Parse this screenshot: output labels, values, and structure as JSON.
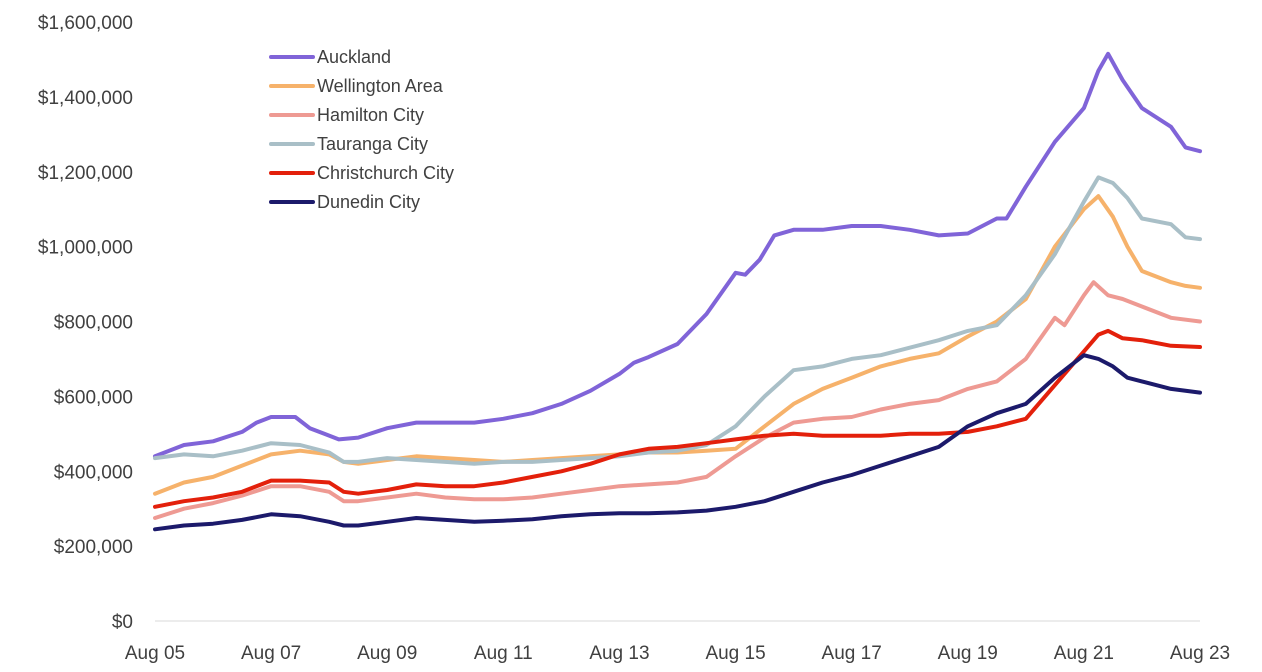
{
  "chart_data": {
    "type": "line",
    "title": "",
    "xlabel": "",
    "ylabel": "",
    "x_tick_labels": [
      "Aug 05",
      "Aug 07",
      "Aug 09",
      "Aug 11",
      "Aug 13",
      "Aug 15",
      "Aug 17",
      "Aug 19",
      "Aug 21",
      "Aug 23"
    ],
    "y_tick_labels": [
      "$0",
      "$200,000",
      "$400,000",
      "$600,000",
      "$800,000",
      "$1,000,000",
      "$1,200,000",
      "$1,400,000",
      "$1,600,000"
    ],
    "x_range": [
      "Aug 05",
      "Aug 23"
    ],
    "ylim": [
      0,
      1600000
    ],
    "grid": false,
    "legend_position": "top-left",
    "series": [
      {
        "name": "Auckland",
        "color": "#8064d8",
        "points": [
          [
            "Aug 05",
            440000
          ],
          [
            "Feb 06",
            470000
          ],
          [
            "Aug 06",
            480000
          ],
          [
            "Feb 07",
            505000
          ],
          [
            "May 07",
            530000
          ],
          [
            "Aug 07",
            545000
          ],
          [
            "Jan 08",
            545000
          ],
          [
            "Apr 08",
            515000
          ],
          [
            "Jul 08",
            500000
          ],
          [
            "Oct 08",
            485000
          ],
          [
            "Feb 09",
            490000
          ],
          [
            "Aug 09",
            515000
          ],
          [
            "Feb 10",
            530000
          ],
          [
            "Aug 10",
            530000
          ],
          [
            "Feb 11",
            530000
          ],
          [
            "Aug 11",
            540000
          ],
          [
            "Feb 12",
            555000
          ],
          [
            "Aug 12",
            580000
          ],
          [
            "Feb 13",
            615000
          ],
          [
            "Aug 13",
            660000
          ],
          [
            "Nov 13",
            690000
          ],
          [
            "Feb 14",
            705000
          ],
          [
            "Aug 14",
            740000
          ],
          [
            "Feb 15",
            820000
          ],
          [
            "Aug 15",
            930000
          ],
          [
            "Oct 15",
            925000
          ],
          [
            "Jan 16",
            965000
          ],
          [
            "Apr 16",
            1030000
          ],
          [
            "Aug 16",
            1045000
          ],
          [
            "Feb 17",
            1045000
          ],
          [
            "Aug 17",
            1055000
          ],
          [
            "Feb 18",
            1055000
          ],
          [
            "Aug 18",
            1045000
          ],
          [
            "Feb 19",
            1030000
          ],
          [
            "Aug 19",
            1035000
          ],
          [
            "Feb 20",
            1075000
          ],
          [
            "Apr 20",
            1075000
          ],
          [
            "Aug 20",
            1160000
          ],
          [
            "Feb 21",
            1280000
          ],
          [
            "Aug 21",
            1370000
          ],
          [
            "Nov 21",
            1470000
          ],
          [
            "Jan 22",
            1515000
          ],
          [
            "Apr 22",
            1445000
          ],
          [
            "Aug 22",
            1370000
          ],
          [
            "Feb 23",
            1320000
          ],
          [
            "May 23",
            1265000
          ],
          [
            "Aug 23",
            1255000
          ]
        ]
      },
      {
        "name": "Wellington Area",
        "color": "#f6b26b",
        "points": [
          [
            "Aug 05",
            340000
          ],
          [
            "Feb 06",
            370000
          ],
          [
            "Aug 06",
            385000
          ],
          [
            "Feb 07",
            415000
          ],
          [
            "Aug 07",
            445000
          ],
          [
            "Feb 08",
            455000
          ],
          [
            "Aug 08",
            445000
          ],
          [
            "Nov 08",
            425000
          ],
          [
            "Feb 09",
            420000
          ],
          [
            "Aug 09",
            430000
          ],
          [
            "Feb 10",
            440000
          ],
          [
            "Aug 10",
            435000
          ],
          [
            "Feb 11",
            430000
          ],
          [
            "Aug 11",
            425000
          ],
          [
            "Feb 12",
            430000
          ],
          [
            "Aug 12",
            435000
          ],
          [
            "Feb 13",
            440000
          ],
          [
            "Aug 13",
            445000
          ],
          [
            "Feb 14",
            450000
          ],
          [
            "Aug 14",
            450000
          ],
          [
            "Feb 15",
            455000
          ],
          [
            "Aug 15",
            460000
          ],
          [
            "Feb 16",
            520000
          ],
          [
            "Aug 16",
            580000
          ],
          [
            "Feb 17",
            620000
          ],
          [
            "Aug 17",
            650000
          ],
          [
            "Feb 18",
            680000
          ],
          [
            "Aug 18",
            700000
          ],
          [
            "Feb 19",
            715000
          ],
          [
            "Aug 19",
            760000
          ],
          [
            "Feb 20",
            800000
          ],
          [
            "Aug 20",
            860000
          ],
          [
            "Feb 21",
            1000000
          ],
          [
            "Aug 21",
            1100000
          ],
          [
            "Nov 21",
            1135000
          ],
          [
            "Feb 22",
            1080000
          ],
          [
            "May 22",
            1000000
          ],
          [
            "Aug 22",
            935000
          ],
          [
            "Feb 23",
            905000
          ],
          [
            "May 23",
            895000
          ],
          [
            "Aug 23",
            890000
          ]
        ]
      },
      {
        "name": "Hamilton City",
        "color": "#ee9a93",
        "points": [
          [
            "Aug 05",
            275000
          ],
          [
            "Feb 06",
            300000
          ],
          [
            "Aug 06",
            315000
          ],
          [
            "Feb 07",
            335000
          ],
          [
            "Aug 07",
            360000
          ],
          [
            "Feb 08",
            360000
          ],
          [
            "Aug 08",
            345000
          ],
          [
            "Nov 08",
            320000
          ],
          [
            "Feb 09",
            320000
          ],
          [
            "Aug 09",
            330000
          ],
          [
            "Feb 10",
            340000
          ],
          [
            "Aug 10",
            330000
          ],
          [
            "Feb 11",
            325000
          ],
          [
            "Aug 11",
            325000
          ],
          [
            "Feb 12",
            330000
          ],
          [
            "Aug 12",
            340000
          ],
          [
            "Feb 13",
            350000
          ],
          [
            "Aug 13",
            360000
          ],
          [
            "Feb 14",
            365000
          ],
          [
            "Aug 14",
            370000
          ],
          [
            "Feb 15",
            385000
          ],
          [
            "Aug 15",
            440000
          ],
          [
            "Feb 16",
            490000
          ],
          [
            "Aug 16",
            530000
          ],
          [
            "Feb 17",
            540000
          ],
          [
            "Aug 17",
            545000
          ],
          [
            "Feb 18",
            565000
          ],
          [
            "Aug 18",
            580000
          ],
          [
            "Feb 19",
            590000
          ],
          [
            "Aug 19",
            620000
          ],
          [
            "Feb 20",
            640000
          ],
          [
            "Aug 20",
            700000
          ],
          [
            "Feb 21",
            810000
          ],
          [
            "Apr 21",
            790000
          ],
          [
            "Aug 21",
            870000
          ],
          [
            "Oct 21",
            905000
          ],
          [
            "Jan 22",
            870000
          ],
          [
            "Apr 22",
            860000
          ],
          [
            "Aug 22",
            840000
          ],
          [
            "Feb 23",
            810000
          ],
          [
            "Aug 23",
            800000
          ]
        ]
      },
      {
        "name": "Tauranga City",
        "color": "#a9bfc7",
        "points": [
          [
            "Aug 05",
            435000
          ],
          [
            "Feb 06",
            445000
          ],
          [
            "Aug 06",
            440000
          ],
          [
            "Feb 07",
            455000
          ],
          [
            "Aug 07",
            475000
          ],
          [
            "Feb 08",
            470000
          ],
          [
            "Aug 08",
            450000
          ],
          [
            "Nov 08",
            425000
          ],
          [
            "Feb 09",
            425000
          ],
          [
            "Aug 09",
            435000
          ],
          [
            "Feb 10",
            430000
          ],
          [
            "Aug 10",
            425000
          ],
          [
            "Feb 11",
            420000
          ],
          [
            "Aug 11",
            425000
          ],
          [
            "Feb 12",
            425000
          ],
          [
            "Aug 12",
            430000
          ],
          [
            "Feb 13",
            435000
          ],
          [
            "Aug 13",
            440000
          ],
          [
            "Feb 14",
            450000
          ],
          [
            "Aug 14",
            455000
          ],
          [
            "Feb 15",
            470000
          ],
          [
            "Aug 15",
            520000
          ],
          [
            "Feb 16",
            600000
          ],
          [
            "Aug 16",
            670000
          ],
          [
            "Feb 17",
            680000
          ],
          [
            "Aug 17",
            700000
          ],
          [
            "Feb 18",
            710000
          ],
          [
            "Aug 18",
            730000
          ],
          [
            "Feb 19",
            750000
          ],
          [
            "Aug 19",
            775000
          ],
          [
            "Feb 20",
            790000
          ],
          [
            "Aug 20",
            870000
          ],
          [
            "Feb 21",
            980000
          ],
          [
            "Aug 21",
            1120000
          ],
          [
            "Nov 21",
            1185000
          ],
          [
            "Feb 22",
            1170000
          ],
          [
            "May 22",
            1130000
          ],
          [
            "Aug 22",
            1075000
          ],
          [
            "Feb 23",
            1060000
          ],
          [
            "May 23",
            1025000
          ],
          [
            "Aug 23",
            1020000
          ]
        ]
      },
      {
        "name": "Christchurch City",
        "color": "#e3200b",
        "points": [
          [
            "Aug 05",
            305000
          ],
          [
            "Feb 06",
            320000
          ],
          [
            "Aug 06",
            330000
          ],
          [
            "Feb 07",
            345000
          ],
          [
            "Aug 07",
            375000
          ],
          [
            "Feb 08",
            375000
          ],
          [
            "Aug 08",
            370000
          ],
          [
            "Nov 08",
            345000
          ],
          [
            "Feb 09",
            340000
          ],
          [
            "Aug 09",
            350000
          ],
          [
            "Feb 10",
            365000
          ],
          [
            "Aug 10",
            360000
          ],
          [
            "Feb 11",
            360000
          ],
          [
            "Aug 11",
            370000
          ],
          [
            "Feb 12",
            385000
          ],
          [
            "Aug 12",
            400000
          ],
          [
            "Feb 13",
            420000
          ],
          [
            "Aug 13",
            445000
          ],
          [
            "Feb 14",
            460000
          ],
          [
            "Aug 14",
            465000
          ],
          [
            "Feb 15",
            475000
          ],
          [
            "Aug 15",
            485000
          ],
          [
            "Feb 16",
            495000
          ],
          [
            "Aug 16",
            500000
          ],
          [
            "Feb 17",
            495000
          ],
          [
            "Aug 17",
            495000
          ],
          [
            "Feb 18",
            495000
          ],
          [
            "Aug 18",
            500000
          ],
          [
            "Feb 19",
            500000
          ],
          [
            "Aug 19",
            505000
          ],
          [
            "Feb 20",
            520000
          ],
          [
            "Aug 20",
            540000
          ],
          [
            "Feb 21",
            630000
          ],
          [
            "Aug 21",
            720000
          ],
          [
            "Nov 21",
            765000
          ],
          [
            "Jan 22",
            775000
          ],
          [
            "Apr 22",
            755000
          ],
          [
            "Aug 22",
            750000
          ],
          [
            "Feb 23",
            735000
          ],
          [
            "Aug 23",
            732000
          ]
        ]
      },
      {
        "name": "Dunedin City",
        "color": "#1c1a6b",
        "points": [
          [
            "Aug 05",
            245000
          ],
          [
            "Feb 06",
            255000
          ],
          [
            "Aug 06",
            260000
          ],
          [
            "Feb 07",
            270000
          ],
          [
            "Aug 07",
            285000
          ],
          [
            "Feb 08",
            280000
          ],
          [
            "Aug 08",
            265000
          ],
          [
            "Nov 08",
            255000
          ],
          [
            "Feb 09",
            255000
          ],
          [
            "Aug 09",
            265000
          ],
          [
            "Feb 10",
            275000
          ],
          [
            "Aug 10",
            270000
          ],
          [
            "Feb 11",
            265000
          ],
          [
            "Aug 11",
            268000
          ],
          [
            "Feb 12",
            272000
          ],
          [
            "Aug 12",
            280000
          ],
          [
            "Feb 13",
            285000
          ],
          [
            "Aug 13",
            288000
          ],
          [
            "Feb 14",
            288000
          ],
          [
            "Aug 14",
            290000
          ],
          [
            "Feb 15",
            295000
          ],
          [
            "Aug 15",
            305000
          ],
          [
            "Feb 16",
            320000
          ],
          [
            "Aug 16",
            345000
          ],
          [
            "Feb 17",
            370000
          ],
          [
            "Aug 17",
            390000
          ],
          [
            "Feb 18",
            415000
          ],
          [
            "Aug 18",
            440000
          ],
          [
            "Feb 19",
            465000
          ],
          [
            "Aug 19",
            520000
          ],
          [
            "Feb 20",
            555000
          ],
          [
            "Aug 20",
            580000
          ],
          [
            "Feb 21",
            650000
          ],
          [
            "Aug 21",
            710000
          ],
          [
            "Nov 21",
            700000
          ],
          [
            "Feb 22",
            680000
          ],
          [
            "May 22",
            650000
          ],
          [
            "Aug 22",
            640000
          ],
          [
            "Feb 23",
            620000
          ],
          [
            "Aug 23",
            610000
          ]
        ]
      }
    ]
  }
}
